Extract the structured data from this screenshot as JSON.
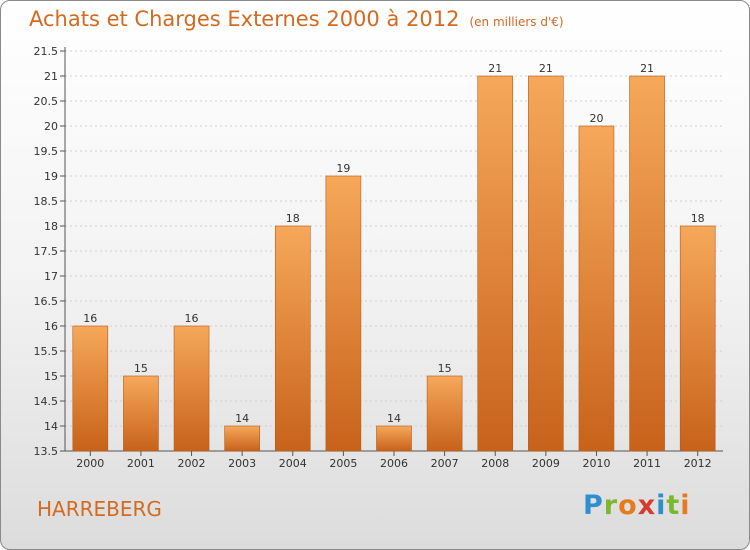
{
  "header": {
    "title": "Achats et Charges Externes 2000 à 2012",
    "unit": "(en milliers d'€)"
  },
  "footer": {
    "commune": "HARREBERG",
    "brand": {
      "letters": [
        "P",
        "r",
        "o",
        "x",
        "i",
        "t",
        "i"
      ],
      "colors": [
        "#2e8fd0",
        "#7cb82f",
        "#e87a1e",
        "#d63a2e",
        "#2e8fd0",
        "#7cb82f",
        "#e87a1e"
      ]
    }
  },
  "colors": {
    "bar_top": "#f6a85a",
    "bar_bottom": "#c8621a",
    "bar_edge": "#b85a18",
    "axis_text": "#333333",
    "title": "#d46a20",
    "grid": "#d0d0d0"
  },
  "chart_data": {
    "type": "bar",
    "title": "Achats et Charges Externes 2000 à 2012",
    "subtitle": "(en milliers d'€)",
    "xlabel": "",
    "ylabel": "",
    "categories": [
      "2000",
      "2001",
      "2002",
      "2003",
      "2004",
      "2005",
      "2006",
      "2007",
      "2008",
      "2009",
      "2010",
      "2011",
      "2012"
    ],
    "values": [
      16,
      15,
      16,
      14,
      18,
      19,
      14,
      15,
      21,
      21,
      20,
      21,
      18
    ],
    "data_labels": [
      "16",
      "15",
      "16",
      "14",
      "18",
      "19",
      "14",
      "15",
      "21",
      "21",
      "20",
      "21",
      "18"
    ],
    "ylim": [
      13.5,
      21.5
    ],
    "yticks": [
      13.5,
      14,
      14.5,
      15,
      15.5,
      16,
      16.5,
      17,
      17.5,
      18,
      18.5,
      19,
      19.5,
      20,
      20.5,
      21,
      21.5
    ],
    "ytick_labels": [
      "13.5",
      "14",
      "14.5",
      "15",
      "15.5",
      "16",
      "16.5",
      "17",
      "17.5",
      "18",
      "18.5",
      "19",
      "19.5",
      "20",
      "20.5",
      "21",
      "21.5"
    ],
    "grid": true,
    "legend": "none"
  }
}
